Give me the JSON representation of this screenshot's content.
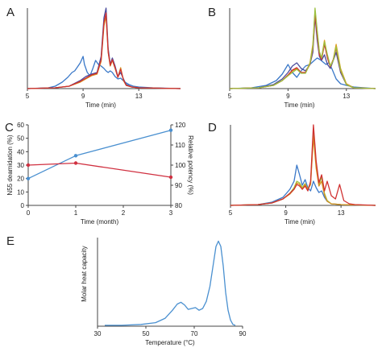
{
  "chart_data": [
    {
      "panel": "A",
      "type": "line",
      "xlabel": "Time (min)",
      "xticks": [
        "5",
        "9",
        "13"
      ],
      "xlim": [
        5,
        16
      ],
      "ylim": [
        0,
        1
      ],
      "series": [
        {
          "color": "#3a78c8",
          "x": [
            5,
            6.5,
            7,
            7.5,
            7.9,
            8.2,
            8.4,
            8.6,
            8.8,
            9,
            9.1,
            9.3,
            9.5,
            9.7,
            9.9,
            10.1,
            10.3,
            10.5,
            10.65,
            10.8,
            10.95,
            11.1,
            11.3,
            11.5,
            11.7,
            12,
            12.3,
            12.6,
            13,
            14,
            16
          ],
          "y": [
            0,
            0.01,
            0.03,
            0.08,
            0.14,
            0.2,
            0.22,
            0.27,
            0.32,
            0.4,
            0.3,
            0.2,
            0.16,
            0.25,
            0.35,
            0.3,
            0.28,
            0.25,
            0.22,
            0.2,
            0.22,
            0.2,
            0.15,
            0.12,
            0.13,
            0.08,
            0.05,
            0.03,
            0.02,
            0.01,
            0
          ]
        },
        {
          "color": "#4a4c9c",
          "x": [
            5,
            7,
            8,
            8.8,
            9.2,
            9.6,
            10,
            10.3,
            10.5,
            10.65,
            10.8,
            10.95,
            11.1,
            11.3,
            11.5,
            11.7,
            11.9,
            12.1,
            12.5,
            13,
            16
          ],
          "y": [
            0,
            0.01,
            0.03,
            0.1,
            0.15,
            0.18,
            0.2,
            0.4,
            0.88,
            1.0,
            0.5,
            0.3,
            0.38,
            0.28,
            0.15,
            0.2,
            0.12,
            0.05,
            0.02,
            0.01,
            0
          ]
        },
        {
          "color": "#d69020",
          "x": [
            5,
            7,
            8,
            8.8,
            9.2,
            9.6,
            10,
            10.3,
            10.5,
            10.65,
            10.8,
            10.95,
            11.1,
            11.3,
            11.5,
            11.7,
            11.9,
            12.1,
            12.5,
            13,
            16
          ],
          "y": [
            0,
            0.01,
            0.03,
            0.08,
            0.12,
            0.16,
            0.18,
            0.34,
            0.78,
            0.9,
            0.45,
            0.28,
            0.35,
            0.25,
            0.14,
            0.26,
            0.1,
            0.04,
            0.02,
            0.01,
            0
          ]
        },
        {
          "color": "#d03030",
          "x": [
            5,
            7,
            8,
            8.8,
            9.2,
            9.6,
            10,
            10.3,
            10.5,
            10.65,
            10.8,
            10.95,
            11.1,
            11.3,
            11.5,
            11.7,
            11.9,
            12.1,
            12.5,
            13,
            16
          ],
          "y": [
            0,
            0.01,
            0.03,
            0.09,
            0.13,
            0.17,
            0.19,
            0.36,
            0.82,
            0.94,
            0.46,
            0.29,
            0.36,
            0.26,
            0.14,
            0.24,
            0.11,
            0.04,
            0.02,
            0.01,
            0
          ]
        }
      ]
    },
    {
      "panel": "B",
      "type": "line",
      "xlabel": "Time (min)",
      "xticks": [
        "5",
        "9",
        "13"
      ],
      "xlim": [
        5,
        15
      ],
      "ylim": [
        0,
        1
      ],
      "series": [
        {
          "color": "#3a78c8",
          "x": [
            5,
            6.5,
            7.5,
            8.2,
            8.6,
            9,
            9.3,
            9.6,
            9.9,
            10.2,
            10.5,
            10.8,
            11,
            11.2,
            11.4,
            11.6,
            11.8,
            12,
            12.3,
            12.6,
            13,
            13.5,
            15
          ],
          "y": [
            0,
            0.01,
            0.04,
            0.1,
            0.18,
            0.3,
            0.2,
            0.14,
            0.22,
            0.28,
            0.3,
            0.35,
            0.38,
            0.36,
            0.33,
            0.3,
            0.32,
            0.25,
            0.12,
            0.06,
            0.04,
            0.02,
            0
          ]
        },
        {
          "color": "#4a4c9c",
          "x": [
            5,
            7,
            8,
            8.6,
            9,
            9.3,
            9.6,
            9.9,
            10.2,
            10.5,
            10.7,
            10.85,
            11,
            11.15,
            11.3,
            11.5,
            11.7,
            11.9,
            12.1,
            12.3,
            12.6,
            13,
            13.5,
            15
          ],
          "y": [
            0,
            0.01,
            0.05,
            0.12,
            0.2,
            0.28,
            0.32,
            0.25,
            0.22,
            0.3,
            0.45,
            0.9,
            0.6,
            0.4,
            0.35,
            0.42,
            0.3,
            0.25,
            0.35,
            0.45,
            0.2,
            0.05,
            0.01,
            0
          ]
        },
        {
          "color": "#e0a020",
          "x": [
            5,
            7,
            8,
            8.6,
            9,
            9.3,
            9.6,
            9.9,
            10.2,
            10.5,
            10.7,
            10.85,
            11,
            11.15,
            11.3,
            11.5,
            11.7,
            11.9,
            12.1,
            12.3,
            12.6,
            13,
            13.5,
            15
          ],
          "y": [
            0,
            0.01,
            0.04,
            0.1,
            0.16,
            0.22,
            0.25,
            0.2,
            0.2,
            0.32,
            0.55,
            0.96,
            0.7,
            0.45,
            0.38,
            0.6,
            0.4,
            0.28,
            0.36,
            0.55,
            0.25,
            0.06,
            0.01,
            0
          ]
        },
        {
          "color": "#d03030",
          "x": [
            5,
            7,
            8,
            8.6,
            9,
            9.3,
            9.6,
            9.9,
            10.2,
            10.5,
            10.7,
            10.85,
            11,
            11.15,
            11.3,
            11.5,
            11.7,
            11.9,
            12.1,
            12.3,
            12.6,
            13,
            13.5,
            15
          ],
          "y": [
            0,
            0.01,
            0.04,
            0.1,
            0.17,
            0.23,
            0.26,
            0.2,
            0.2,
            0.3,
            0.5,
            0.92,
            0.66,
            0.42,
            0.36,
            0.55,
            0.38,
            0.27,
            0.36,
            0.5,
            0.22,
            0.05,
            0.01,
            0
          ]
        },
        {
          "color": "#9cc040",
          "x": [
            5,
            7,
            8,
            8.6,
            9,
            9.3,
            9.6,
            9.9,
            10.2,
            10.5,
            10.7,
            10.85,
            11,
            11.15,
            11.3,
            11.5,
            11.7,
            11.9,
            12.1,
            12.3,
            12.6,
            13,
            13.5,
            15
          ],
          "y": [
            0,
            0.01,
            0.04,
            0.1,
            0.16,
            0.2,
            0.24,
            0.19,
            0.19,
            0.31,
            0.52,
            1.0,
            0.72,
            0.46,
            0.38,
            0.58,
            0.42,
            0.28,
            0.35,
            0.52,
            0.23,
            0.05,
            0.01,
            0
          ]
        }
      ]
    },
    {
      "panel": "C",
      "type": "line",
      "xlabel": "Time (month)",
      "ylabel": "N55 deamidation (%)",
      "y2label": "Relative potency (%)",
      "xlim": [
        0,
        3
      ],
      "ylim": [
        0,
        60
      ],
      "y2lim": [
        80,
        120
      ],
      "xticks": [
        "0",
        "1",
        "2",
        "3"
      ],
      "yticks": [
        "0",
        "10",
        "20",
        "30",
        "40",
        "50",
        "60"
      ],
      "y2ticks": [
        "80",
        "90",
        "100",
        "110",
        "120"
      ],
      "series": [
        {
          "color": "#4a90d0",
          "axis": "left",
          "x": [
            0,
            1,
            3
          ],
          "y": [
            20,
            37,
            56
          ]
        },
        {
          "color": "#d03040",
          "axis": "right",
          "x": [
            0,
            1,
            3
          ],
          "y": [
            100,
            101,
            94
          ]
        }
      ]
    },
    {
      "panel": "D",
      "type": "line",
      "xlabel": "Time (min)",
      "xticks": [
        "5",
        "9",
        "13"
      ],
      "xlim": [
        5,
        15.5
      ],
      "ylim": [
        0,
        1
      ],
      "series": [
        {
          "color": "#3a78c8",
          "x": [
            5,
            7,
            8,
            8.8,
            9.3,
            9.6,
            9.8,
            10,
            10.2,
            10.4,
            10.6,
            10.8,
            11,
            11.2,
            11.4,
            11.6,
            11.8,
            12,
            12.3,
            13,
            15.5
          ],
          "y": [
            0,
            0.01,
            0.04,
            0.1,
            0.2,
            0.3,
            0.5,
            0.38,
            0.25,
            0.32,
            0.22,
            0.18,
            0.3,
            0.22,
            0.16,
            0.18,
            0.1,
            0.05,
            0.02,
            0.01,
            0
          ]
        },
        {
          "color": "#9cc040",
          "x": [
            5,
            7,
            8,
            8.8,
            9.3,
            9.6,
            9.8,
            10,
            10.2,
            10.4,
            10.6,
            10.8,
            11,
            11.2,
            11.4,
            11.6,
            11.8,
            12,
            12.3,
            13,
            15.5
          ],
          "y": [
            0,
            0.01,
            0.03,
            0.08,
            0.15,
            0.22,
            0.3,
            0.28,
            0.22,
            0.27,
            0.2,
            0.28,
            0.9,
            0.5,
            0.26,
            0.35,
            0.15,
            0.06,
            0.02,
            0.01,
            0
          ]
        },
        {
          "color": "#d69020",
          "x": [
            5,
            7,
            8,
            8.8,
            9.3,
            9.6,
            9.8,
            10,
            10.2,
            10.4,
            10.6,
            10.8,
            11,
            11.2,
            11.4,
            11.6,
            11.8,
            12,
            12.3,
            13,
            15.5
          ],
          "y": [
            0,
            0.01,
            0.03,
            0.08,
            0.14,
            0.2,
            0.28,
            0.26,
            0.2,
            0.26,
            0.2,
            0.26,
            0.85,
            0.46,
            0.24,
            0.3,
            0.13,
            0.05,
            0.02,
            0.01,
            0
          ]
        },
        {
          "color": "#d03030",
          "x": [
            5,
            7,
            8,
            8.8,
            9.3,
            9.6,
            9.8,
            10,
            10.2,
            10.4,
            10.6,
            10.8,
            11,
            11.2,
            11.4,
            11.6,
            11.8,
            12,
            12.3,
            12.6,
            12.9,
            13.2,
            13.6,
            14,
            15.5
          ],
          "y": [
            0,
            0.01,
            0.03,
            0.08,
            0.15,
            0.2,
            0.26,
            0.24,
            0.2,
            0.24,
            0.18,
            0.3,
            1.0,
            0.55,
            0.28,
            0.38,
            0.18,
            0.3,
            0.12,
            0.08,
            0.26,
            0.06,
            0.02,
            0.01,
            0
          ]
        }
      ]
    },
    {
      "panel": "E",
      "type": "line",
      "xlabel": "Temperature (°C)",
      "ylabel": "Molar heat capacity",
      "xlim": [
        30,
        90
      ],
      "ylim": [
        0,
        1
      ],
      "xticks": [
        "30",
        "50",
        "70",
        "90"
      ],
      "series": [
        {
          "color": "#4a90d0",
          "x": [
            33,
            40,
            48,
            54,
            58,
            61,
            63,
            64.5,
            66,
            67.5,
            69,
            70.5,
            72,
            73.5,
            75,
            76.5,
            78,
            79,
            80,
            81,
            82,
            83,
            84,
            85,
            86,
            87
          ],
          "y": [
            0.01,
            0.01,
            0.02,
            0.04,
            0.09,
            0.18,
            0.25,
            0.27,
            0.24,
            0.19,
            0.2,
            0.21,
            0.18,
            0.2,
            0.28,
            0.45,
            0.72,
            0.9,
            0.96,
            0.9,
            0.68,
            0.38,
            0.18,
            0.07,
            0.02,
            0.01
          ]
        }
      ]
    }
  ],
  "panel_labels": [
    "A",
    "B",
    "C",
    "D",
    "E"
  ]
}
